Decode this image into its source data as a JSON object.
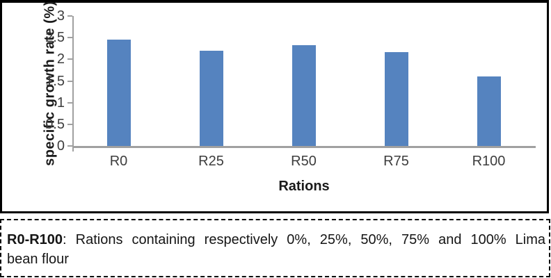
{
  "chart_data": {
    "type": "bar",
    "title": "",
    "categories": [
      "R0",
      "R25",
      "R50",
      "R75",
      "R100"
    ],
    "values": [
      2.46,
      2.2,
      2.32,
      2.17,
      1.6
    ],
    "xlabel": "Rations",
    "ylabel": "specific growth rate (%)",
    "ylim": [
      0,
      3
    ],
    "yticks": [
      0,
      0.5,
      1,
      1.5,
      2,
      2.5,
      3
    ],
    "grid": false,
    "legend": "none",
    "bar_color": "#5583bf",
    "axis_color": "#a0a0a0",
    "tick_label_color": "#3d3d3d",
    "axis_title_color": "#1a1a1a"
  },
  "caption": {
    "bold_term": "R0-R100",
    "line1_rest": ": Rations containing respectively 0%, 25%, 50%, 75% and 100% Lima",
    "line2": "bean flour"
  }
}
